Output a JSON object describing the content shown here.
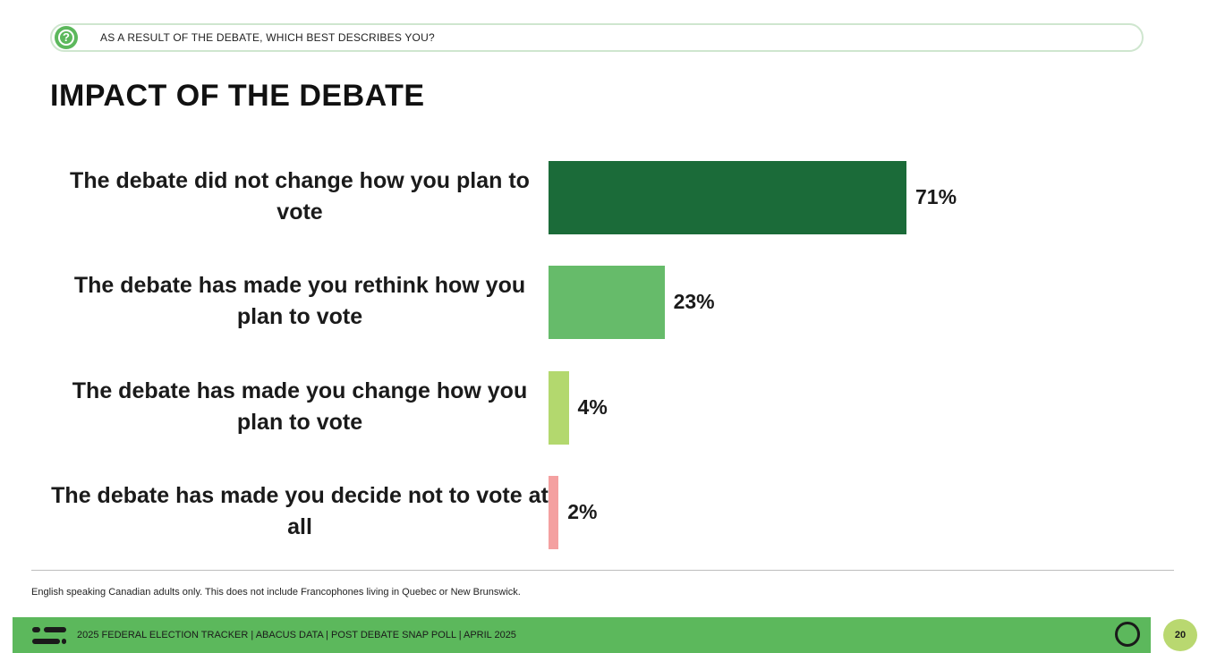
{
  "header": {
    "question": "AS A RESULT OF THE DEBATE, WHICH BEST DESCRIBES YOU?",
    "title": "IMPACT OF THE DEBATE"
  },
  "chart_data": {
    "type": "bar",
    "orientation": "horizontal",
    "categories": [
      "The debate did not change how you plan to vote",
      "The debate has made you rethink how you plan to vote",
      "The debate has made you change how you plan to vote",
      "The debate has made you decide not to vote at all"
    ],
    "values": [
      71,
      23,
      4,
      2
    ],
    "value_labels": [
      "71%",
      "23%",
      "4%",
      "2%"
    ],
    "colors": [
      "#1b6b39",
      "#66bb6a",
      "#b3d86e",
      "#f4a0a0"
    ],
    "unit": "%",
    "xlim": [
      0,
      100
    ],
    "grid": false,
    "legend": "none"
  },
  "footnote": "English speaking Canadian adults only. This does not include Francophones living in Quebec or New Brunswick.",
  "footer": {
    "text": "2025 FEDERAL ELECTION TRACKER  |  ABACUS DATA  |  POST DEBATE SNAP POLL  |  APRIL 2025",
    "page_number": "20",
    "accent_color": "#5cb85c"
  }
}
